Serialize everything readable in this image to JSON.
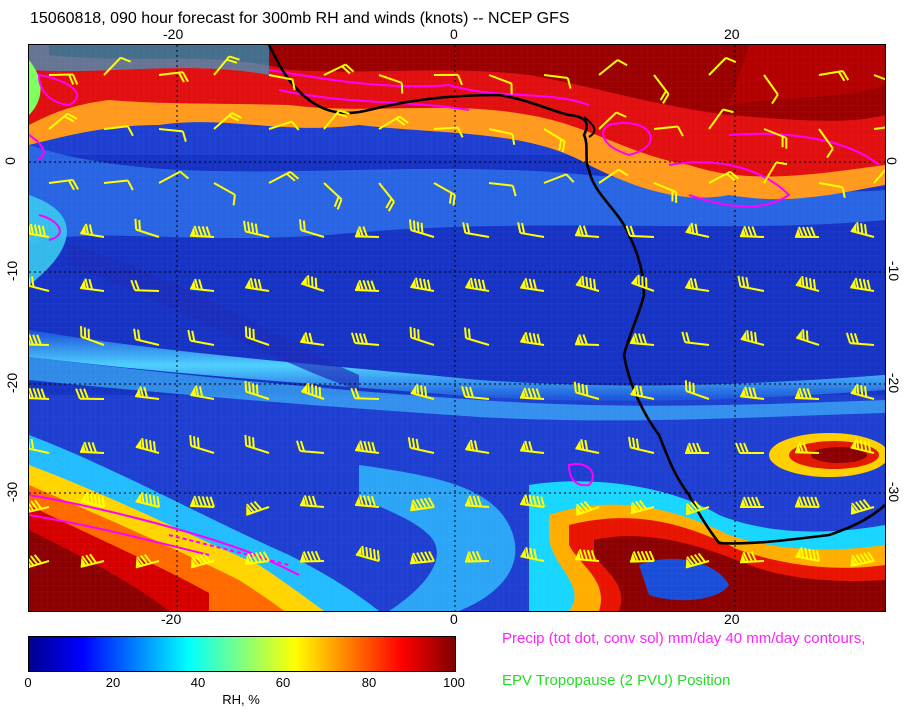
{
  "title": "15060818, 090 hour forecast for 300mb RH and winds (knots) -- NCEP GFS",
  "map": {
    "x_ticks": [
      "-20",
      "0",
      "20"
    ],
    "y_ticks": [
      "0",
      "-10",
      "-20",
      "-30"
    ],
    "colors": {
      "rh_low": "#00008f",
      "rh_mid": "#00ffff",
      "rh_high": "#800000",
      "wind_barbs": "#ffff00",
      "coastline": "#000000",
      "precip_contours": "#ff00ff",
      "tropopause": "#00dd00"
    }
  },
  "colorbar": {
    "ticks": [
      "0",
      "20",
      "40",
      "60",
      "80",
      "100"
    ],
    "label": "RH, %",
    "stops": [
      "#00008f",
      "#0000ff",
      "#0080ff",
      "#00ffff",
      "#80ff80",
      "#ffff00",
      "#ff8000",
      "#ff0000",
      "#800000"
    ]
  },
  "legend": {
    "precip": "Precip (tot dot, conv sol) mm/day 40 mm/day contours,",
    "epv": "EPV Tropopause (2 PVU) Position"
  }
}
